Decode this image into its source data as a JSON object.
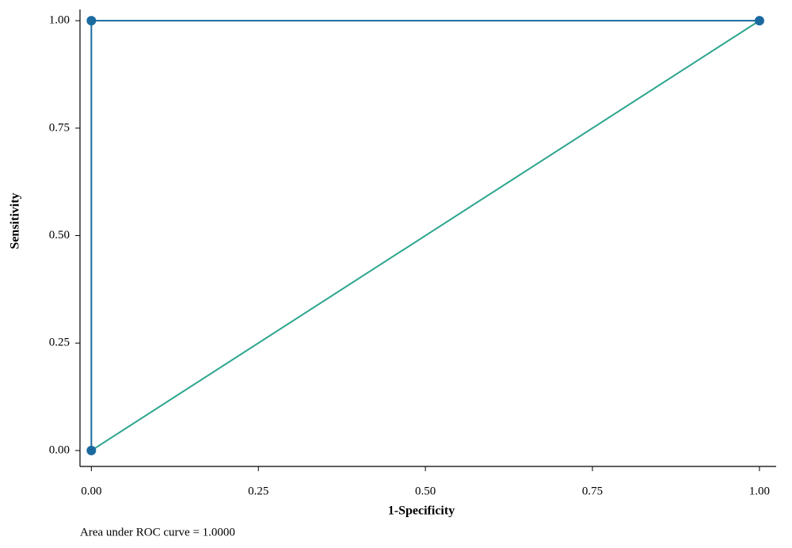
{
  "chart_data": {
    "type": "line",
    "x_label": "1-Specificity",
    "y_label": "Sensitivity",
    "note": "Area under ROC curve = 1.0000",
    "xlim": [
      -0.017,
      1.025
    ],
    "ylim": [
      -0.037,
      1.026
    ],
    "xticks": [
      {
        "value": 0,
        "label": "0.00"
      },
      {
        "value": 0.25,
        "label": "0.25"
      },
      {
        "value": 0.5,
        "label": "0.50"
      },
      {
        "value": 0.75,
        "label": "0.75"
      },
      {
        "value": 1,
        "label": "1.00"
      }
    ],
    "yticks": [
      {
        "value": 0,
        "label": "0.00"
      },
      {
        "value": 0.25,
        "label": "0.25"
      },
      {
        "value": 0.5,
        "label": "0.50"
      },
      {
        "value": 0.75,
        "label": "0.75"
      },
      {
        "value": 1,
        "label": "1.00"
      }
    ],
    "grid": false,
    "series": [
      {
        "color": "#1a6aa0",
        "markers": true,
        "x": [
          0,
          0,
          1
        ],
        "y": [
          0,
          1,
          1
        ]
      },
      {
        "color": "#2ca58d",
        "markers": false,
        "x": [
          0,
          1
        ],
        "y": [
          0,
          1
        ]
      }
    ]
  }
}
